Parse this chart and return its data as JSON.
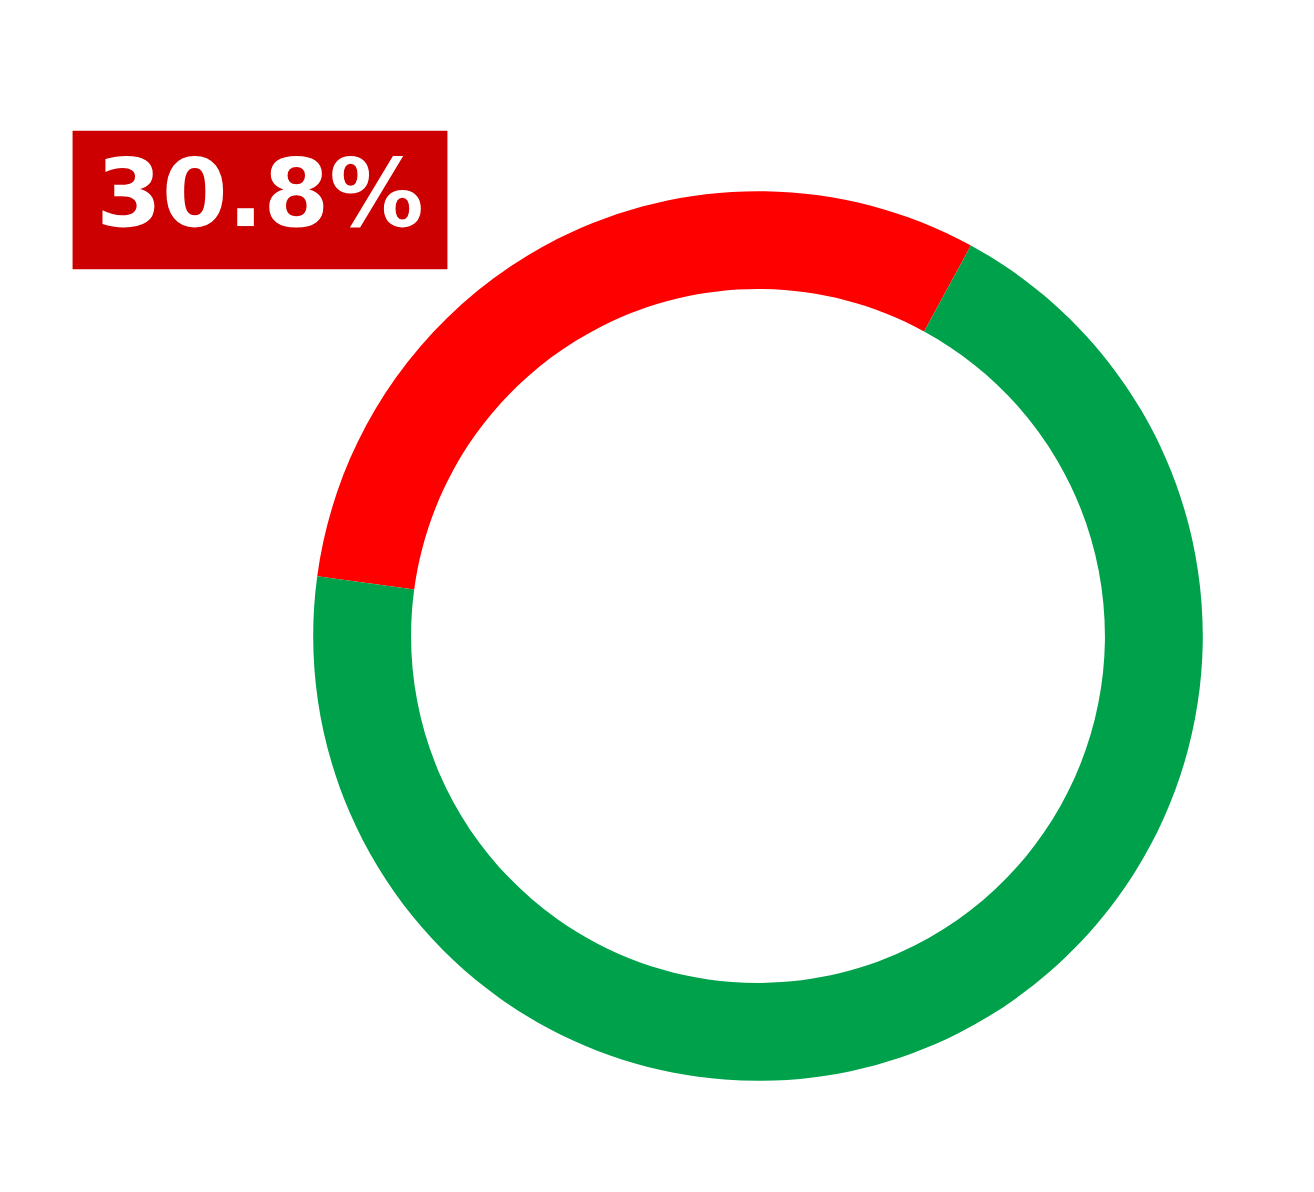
{
  "chart_data": {
    "type": "donut",
    "categories": [
      null,
      null
    ],
    "values": [
      30.8,
      69.2
    ],
    "colors": [
      "#fe0000",
      "#00a14b"
    ],
    "value_labels": [
      "30.8%",
      null
    ]
  }
}
